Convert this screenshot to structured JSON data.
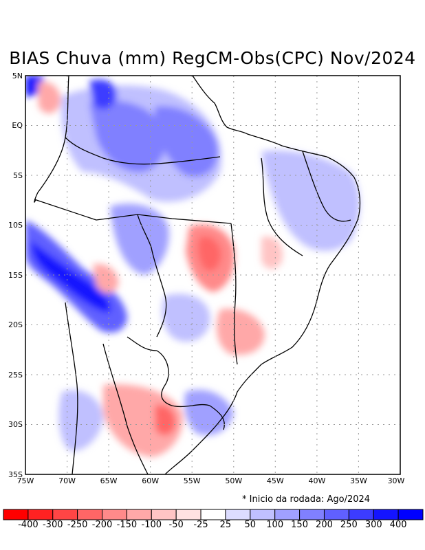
{
  "title": "BIAS Chuva (mm) RegCM-Obs(CPC) Nov/2024",
  "footnote": "* Inicio da rodada: Ago/2024",
  "lat_labels": [
    "5N",
    "EQ",
    "5S",
    "10S",
    "15S",
    "20S",
    "25S",
    "30S",
    "35S"
  ],
  "lon_labels": [
    "75W",
    "70W",
    "65W",
    "60W",
    "55W",
    "50W",
    "45W",
    "40W",
    "35W",
    "30W"
  ],
  "colorbar": {
    "labels": [
      "-400",
      "-300",
      "-250",
      "-200",
      "-150",
      "-100",
      "-50",
      "-25",
      "25",
      "50",
      "100",
      "150",
      "200",
      "250",
      "300",
      "400"
    ],
    "colors": [
      "#ff0000",
      "#ff2222",
      "#ff4545",
      "#ff6666",
      "#ff8a8a",
      "#ffa8a8",
      "#ffc4c4",
      "#ffe2e2",
      "#ffffff",
      "#dcdcff",
      "#c0c0ff",
      "#a0a0ff",
      "#8080ff",
      "#6060ff",
      "#3c3cff",
      "#1414ff",
      "#0000ff"
    ]
  }
}
